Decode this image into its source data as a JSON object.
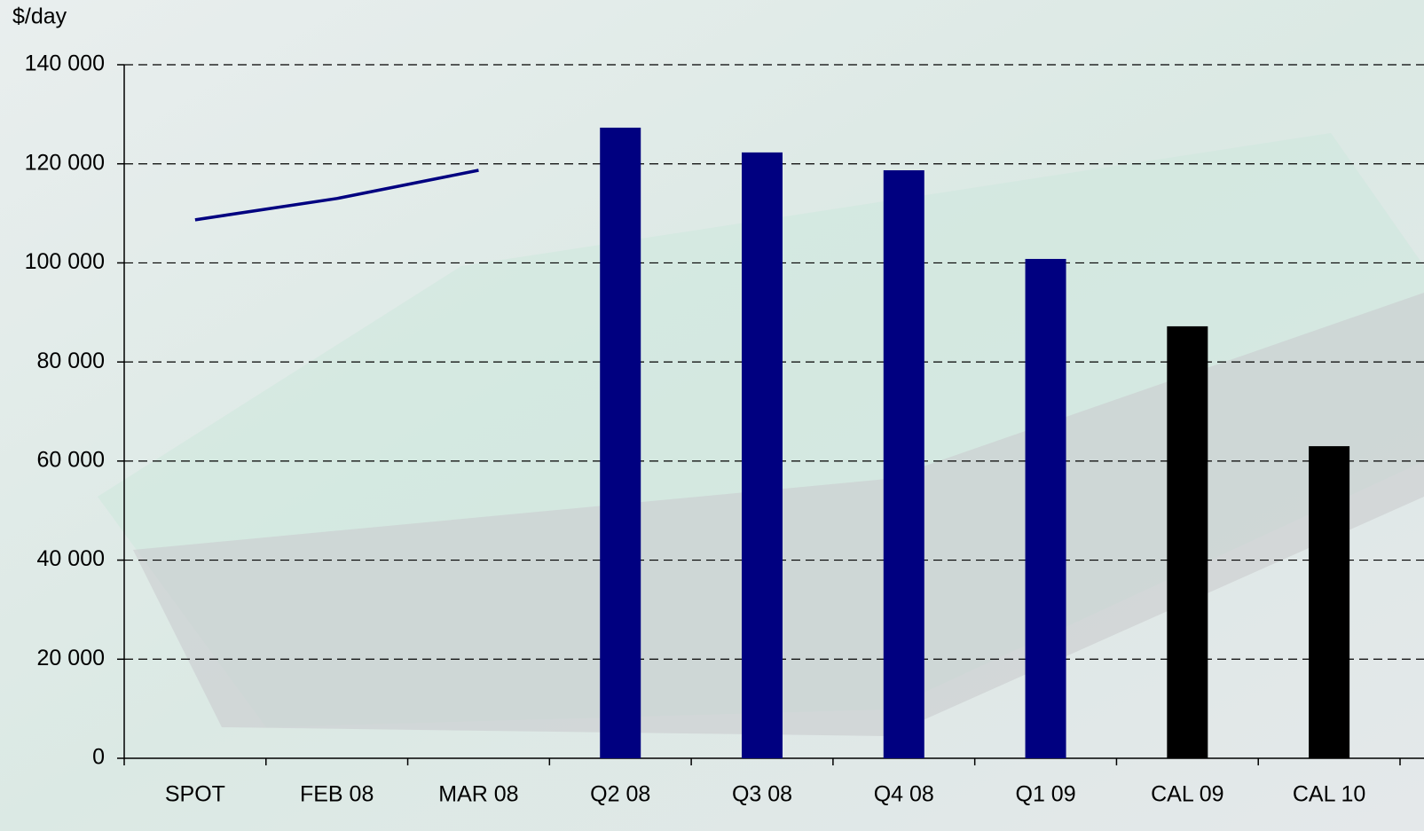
{
  "chart_data": {
    "type": "bar",
    "y_label": "$/day",
    "categories": [
      "SPOT",
      "FEB 08",
      "MAR 08",
      "Q2 08",
      "Q3 08",
      "Q4 08",
      "Q1 09",
      "CAL 09",
      "CAL 10"
    ],
    "series": [
      {
        "type": "line",
        "color": "#000080",
        "values": [
          108700,
          113000,
          118700,
          null,
          null,
          null,
          null,
          null,
          null
        ]
      },
      {
        "type": "bar",
        "color": "#000080",
        "values": [
          null,
          null,
          null,
          127300,
          122300,
          118700,
          100800,
          null,
          null
        ]
      },
      {
        "type": "bar",
        "color": "#000000",
        "values": [
          null,
          null,
          null,
          null,
          null,
          null,
          null,
          87200,
          63000
        ]
      }
    ],
    "ylim": [
      0,
      140000
    ],
    "yticks": [
      0,
      {
        "value": 20000,
        "label": "20 000"
      },
      {
        "value": 40000,
        "label": "40 000"
      },
      {
        "value": 60000,
        "label": "60 000"
      },
      {
        "value": 80000,
        "label": "80 000"
      },
      {
        "value": 100000,
        "label": "100 000"
      },
      {
        "value": 120000,
        "label": "120 000"
      },
      {
        "value": 140000,
        "label": "140 000"
      }
    ],
    "grid": true
  }
}
